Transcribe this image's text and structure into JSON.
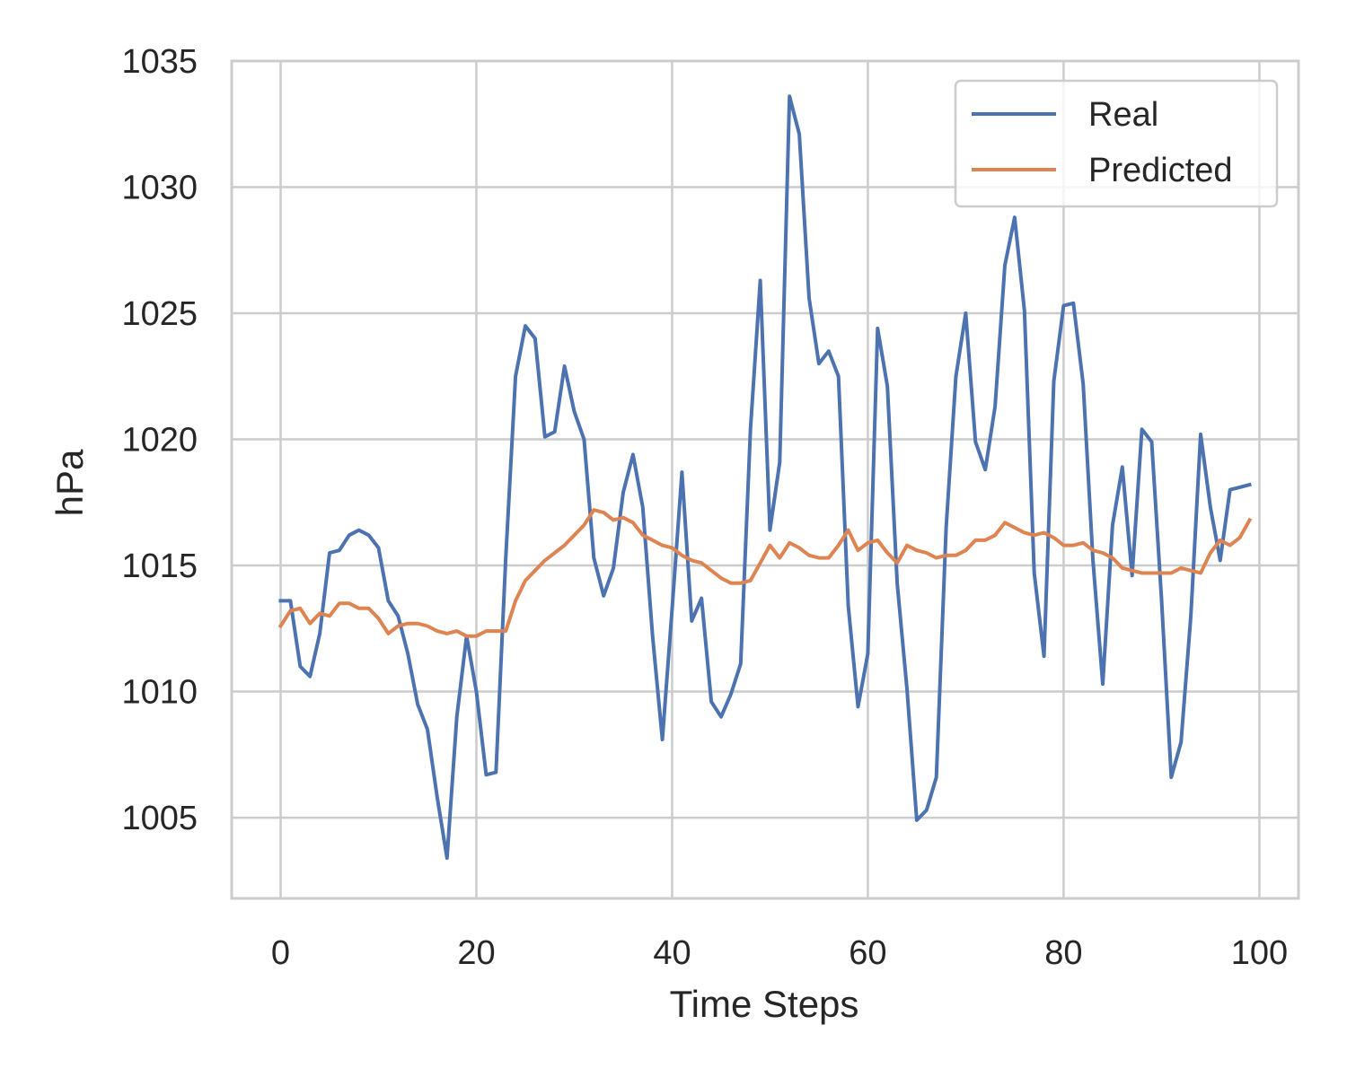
{
  "chart_data": {
    "type": "line",
    "title": "",
    "xlabel": "Time Steps",
    "ylabel": "hPa",
    "xlim": [
      -5,
      104
    ],
    "ylim": [
      1001.8,
      1035
    ],
    "xticks": [
      0,
      20,
      40,
      60,
      80,
      100
    ],
    "yticks": [
      1005,
      1010,
      1015,
      1020,
      1025,
      1030,
      1035
    ],
    "grid": true,
    "legend_position": "top-right",
    "colors": {
      "real": "#4c72b0",
      "predicted": "#dd8452",
      "grid": "#cccccc",
      "spine": "#cccccc",
      "text": "#262626"
    },
    "series": [
      {
        "name": "Real",
        "x": [
          0,
          1,
          2,
          3,
          4,
          5,
          6,
          7,
          8,
          9,
          10,
          11,
          12,
          13,
          14,
          15,
          16,
          17,
          18,
          19,
          20,
          21,
          22,
          23,
          24,
          25,
          26,
          27,
          28,
          29,
          30,
          31,
          32,
          33,
          34,
          35,
          36,
          37,
          38,
          39,
          40,
          41,
          42,
          43,
          44,
          45,
          46,
          47,
          48,
          49,
          50,
          51,
          52,
          53,
          54,
          55,
          56,
          57,
          58,
          59,
          60,
          61,
          62,
          63,
          64,
          65,
          66,
          67,
          68,
          69,
          70,
          71,
          72,
          73,
          74,
          75,
          76,
          77,
          78,
          79,
          80,
          81,
          82,
          83,
          84,
          85,
          86,
          87,
          88,
          89,
          90,
          91,
          92,
          93,
          94,
          95,
          96,
          97,
          98,
          99
        ],
        "values": [
          1013.6,
          1013.6,
          1011.0,
          1010.6,
          1012.3,
          1015.5,
          1015.6,
          1016.2,
          1016.4,
          1016.2,
          1015.7,
          1013.6,
          1013.0,
          1011.5,
          1009.5,
          1008.5,
          1005.8,
          1003.4,
          1009.0,
          1012.2,
          1010.0,
          1006.7,
          1006.8,
          1015.3,
          1022.5,
          1024.5,
          1024.0,
          1020.1,
          1020.3,
          1022.9,
          1021.1,
          1020.0,
          1015.3,
          1013.8,
          1014.9,
          1017.9,
          1019.4,
          1017.3,
          1012.2,
          1008.1,
          1013.3,
          1018.7,
          1012.8,
          1013.7,
          1009.6,
          1009.0,
          1009.9,
          1011.1,
          1020.4,
          1026.3,
          1016.4,
          1019.1,
          1033.6,
          1032.1,
          1025.6,
          1023.0,
          1023.5,
          1022.5,
          1013.4,
          1009.4,
          1011.5,
          1024.4,
          1022.1,
          1014.3,
          1010.1,
          1004.9,
          1005.3,
          1006.6,
          1016.5,
          1022.5,
          1025.0,
          1019.9,
          1018.8,
          1021.3,
          1026.9,
          1028.8,
          1025.1,
          1014.7,
          1011.4,
          1022.3,
          1025.3,
          1025.4,
          1022.2,
          1015.2,
          1010.3,
          1016.6,
          1018.9,
          1014.6,
          1020.4,
          1019.9,
          1013.7,
          1006.6,
          1008.0,
          1013.0,
          1020.2,
          1017.3,
          1015.2,
          1018.0,
          1018.1,
          1018.2
        ]
      },
      {
        "name": "Predicted",
        "x": [
          0,
          1,
          2,
          3,
          4,
          5,
          6,
          7,
          8,
          9,
          10,
          11,
          12,
          13,
          14,
          15,
          16,
          17,
          18,
          19,
          20,
          21,
          22,
          23,
          24,
          25,
          26,
          27,
          28,
          29,
          30,
          31,
          32,
          33,
          34,
          35,
          36,
          37,
          38,
          39,
          40,
          41,
          42,
          43,
          44,
          45,
          46,
          47,
          48,
          49,
          50,
          51,
          52,
          53,
          54,
          55,
          56,
          57,
          58,
          59,
          60,
          61,
          62,
          63,
          64,
          65,
          66,
          67,
          68,
          69,
          70,
          71,
          72,
          73,
          74,
          75,
          76,
          77,
          78,
          79,
          80,
          81,
          82,
          83,
          84,
          85,
          86,
          87,
          88,
          89,
          90,
          91,
          92,
          93,
          94,
          95,
          96,
          97,
          98,
          99
        ],
        "values": [
          1012.6,
          1013.2,
          1013.3,
          1012.7,
          1013.1,
          1013.0,
          1013.5,
          1013.5,
          1013.3,
          1013.3,
          1012.9,
          1012.3,
          1012.6,
          1012.7,
          1012.7,
          1012.6,
          1012.4,
          1012.3,
          1012.4,
          1012.2,
          1012.2,
          1012.4,
          1012.4,
          1012.4,
          1013.6,
          1014.4,
          1014.8,
          1015.2,
          1015.5,
          1015.8,
          1016.2,
          1016.6,
          1017.2,
          1017.1,
          1016.8,
          1016.9,
          1016.7,
          1016.2,
          1016.0,
          1015.8,
          1015.7,
          1015.4,
          1015.2,
          1015.1,
          1014.8,
          1014.5,
          1014.3,
          1014.3,
          1014.4,
          1015.1,
          1015.8,
          1015.3,
          1015.9,
          1015.7,
          1015.4,
          1015.3,
          1015.3,
          1015.8,
          1016.4,
          1015.6,
          1015.9,
          1016.0,
          1015.5,
          1015.1,
          1015.8,
          1015.6,
          1015.5,
          1015.3,
          1015.4,
          1015.4,
          1015.6,
          1016.0,
          1016.0,
          1016.2,
          1016.7,
          1016.5,
          1016.3,
          1016.2,
          1016.3,
          1016.1,
          1015.8,
          1015.8,
          1015.9,
          1015.6,
          1015.5,
          1015.3,
          1014.9,
          1014.8,
          1014.7,
          1014.7,
          1014.7,
          1014.7,
          1014.9,
          1014.8,
          1014.7,
          1015.5,
          1016.0,
          1015.8,
          1016.1,
          1016.8
        ]
      }
    ]
  }
}
